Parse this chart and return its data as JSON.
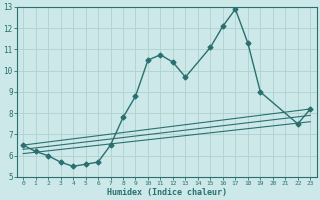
{
  "title": "",
  "xlabel": "Humidex (Indice chaleur)",
  "xlim": [
    -0.5,
    23.5
  ],
  "ylim": [
    5,
    13
  ],
  "yticks": [
    5,
    6,
    7,
    8,
    9,
    10,
    11,
    12,
    13
  ],
  "xticks": [
    0,
    1,
    2,
    3,
    4,
    5,
    6,
    7,
    8,
    9,
    10,
    11,
    12,
    13,
    14,
    15,
    16,
    17,
    18,
    19,
    20,
    21,
    22,
    23
  ],
  "bg_color": "#cce8e8",
  "grid_color": "#b0d0d0",
  "line_color": "#2a7070",
  "series": [
    {
      "x": [
        0,
        1,
        2,
        3,
        4,
        5,
        6,
        7,
        8,
        9,
        10,
        11,
        12,
        13,
        15,
        16,
        17,
        18,
        19,
        22,
        23
      ],
      "y": [
        6.5,
        6.2,
        6.0,
        5.7,
        5.5,
        5.6,
        5.7,
        6.5,
        7.8,
        8.8,
        10.5,
        10.75,
        10.4,
        9.7,
        11.1,
        12.1,
        12.9,
        11.3,
        9.0,
        7.5,
        8.2
      ],
      "marker": "D",
      "markersize": 2.5,
      "linewidth": 1.0
    },
    {
      "x": [
        0,
        23
      ],
      "y": [
        6.5,
        8.2
      ],
      "marker": null,
      "markersize": 0,
      "linewidth": 0.8
    },
    {
      "x": [
        0,
        23
      ],
      "y": [
        6.3,
        7.9
      ],
      "marker": null,
      "markersize": 0,
      "linewidth": 0.8
    },
    {
      "x": [
        0,
        23
      ],
      "y": [
        6.1,
        7.6
      ],
      "marker": null,
      "markersize": 0,
      "linewidth": 0.8
    }
  ]
}
